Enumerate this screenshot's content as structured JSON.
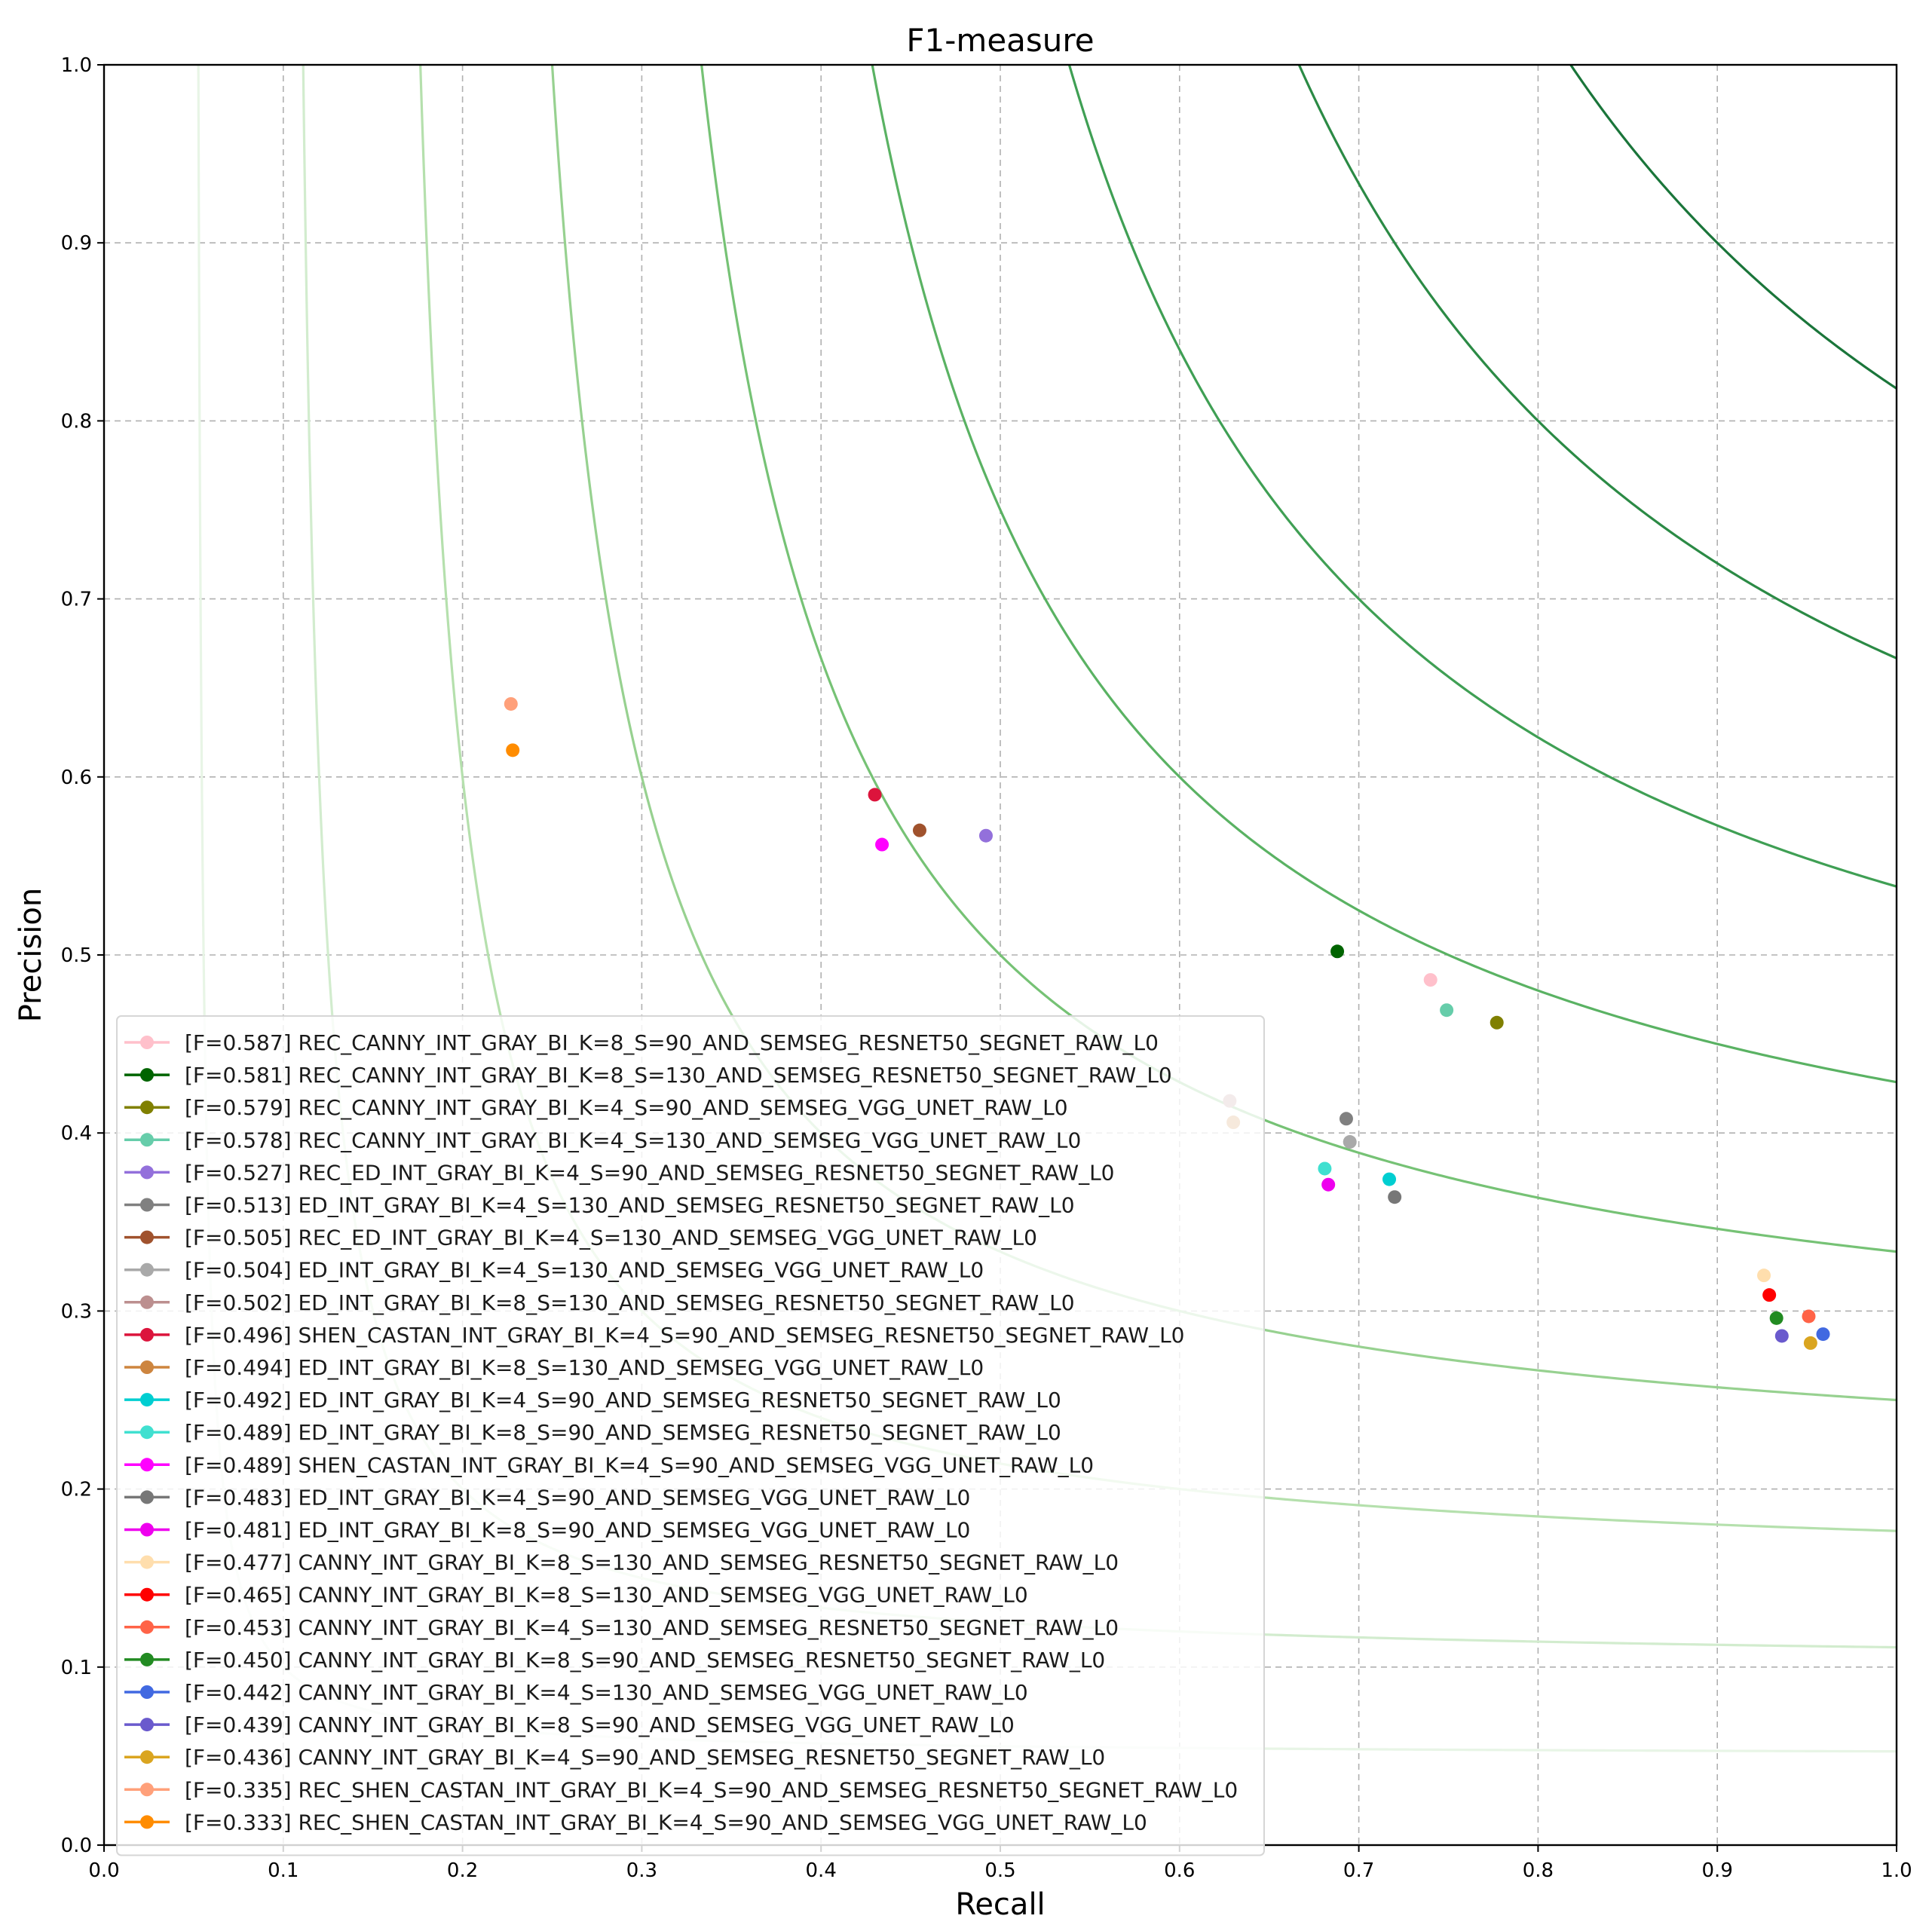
{
  "chart_data": {
    "type": "scatter",
    "title": "F1-measure",
    "xlabel": "Recall",
    "ylabel": "Precision",
    "xlim": [
      0.0,
      1.0
    ],
    "ylim": [
      0.0,
      1.0
    ],
    "grid": true,
    "legend_position": "lower-left",
    "xticks": [
      "0.0",
      "0.1",
      "0.2",
      "0.3",
      "0.4",
      "0.5",
      "0.6",
      "0.7",
      "0.8",
      "0.9",
      "1.0"
    ],
    "yticks": [
      "0.0",
      "0.1",
      "0.2",
      "0.3",
      "0.4",
      "0.5",
      "0.6",
      "0.7",
      "0.8",
      "0.9",
      "1.0"
    ],
    "iso_f_curves": [
      {
        "f": 0.1,
        "color": "#e8f5e6"
      },
      {
        "f": 0.2,
        "color": "#d2ecce"
      },
      {
        "f": 0.3,
        "color": "#b5e0ad"
      },
      {
        "f": 0.4,
        "color": "#97d190"
      },
      {
        "f": 0.5,
        "color": "#76c275"
      },
      {
        "f": 0.6,
        "color": "#5ab263"
      },
      {
        "f": 0.7,
        "color": "#3f9f54"
      },
      {
        "f": 0.8,
        "color": "#2b8a45"
      },
      {
        "f": 0.9,
        "color": "#1a753a"
      }
    ],
    "series": [
      {
        "name": "[F=0.587] REC_CANNY_INT_GRAY_BI_K=8_S=90_AND_SEMSEG_RESNET50_SEGNET_RAW_L0",
        "color": "#ffc0cb",
        "x": 0.74,
        "y": 0.486
      },
      {
        "name": "[F=0.581] REC_CANNY_INT_GRAY_BI_K=8_S=130_AND_SEMSEG_RESNET50_SEGNET_RAW_L0",
        "color": "#006400",
        "x": 0.688,
        "y": 0.502
      },
      {
        "name": "[F=0.579] REC_CANNY_INT_GRAY_BI_K=4_S=90_AND_SEMSEG_VGG_UNET_RAW_L0",
        "color": "#808000",
        "x": 0.777,
        "y": 0.462
      },
      {
        "name": "[F=0.578] REC_CANNY_INT_GRAY_BI_K=4_S=130_AND_SEMSEG_VGG_UNET_RAW_L0",
        "color": "#66cdaa",
        "x": 0.749,
        "y": 0.469
      },
      {
        "name": "[F=0.527] REC_ED_INT_GRAY_BI_K=4_S=90_AND_SEMSEG_RESNET50_SEGNET_RAW_L0",
        "color": "#9370db",
        "x": 0.492,
        "y": 0.567
      },
      {
        "name": "[F=0.513] ED_INT_GRAY_BI_K=4_S=130_AND_SEMSEG_RESNET50_SEGNET_RAW_L0",
        "color": "#808080",
        "x": 0.693,
        "y": 0.408
      },
      {
        "name": "[F=0.505] REC_ED_INT_GRAY_BI_K=4_S=130_AND_SEMSEG_VGG_UNET_RAW_L0",
        "color": "#a0522d",
        "x": 0.455,
        "y": 0.57
      },
      {
        "name": "[F=0.504] ED_INT_GRAY_BI_K=4_S=130_AND_SEMSEG_VGG_UNET_RAW_L0",
        "color": "#a9a9a9",
        "x": 0.695,
        "y": 0.395
      },
      {
        "name": "[F=0.502] ED_INT_GRAY_BI_K=8_S=130_AND_SEMSEG_RESNET50_SEGNET_RAW_L0",
        "color": "#bc8f8f",
        "x": 0.628,
        "y": 0.418
      },
      {
        "name": "[F=0.496] SHEN_CASTAN_INT_GRAY_BI_K=4_S=90_AND_SEMSEG_RESNET50_SEGNET_RAW_L0",
        "color": "#dc143c",
        "x": 0.43,
        "y": 0.59
      },
      {
        "name": "[F=0.494] ED_INT_GRAY_BI_K=8_S=130_AND_SEMSEG_VGG_UNET_RAW_L0",
        "color": "#cd853f",
        "x": 0.63,
        "y": 0.406
      },
      {
        "name": "[F=0.492] ED_INT_GRAY_BI_K=4_S=90_AND_SEMSEG_RESNET50_SEGNET_RAW_L0",
        "color": "#00ced1",
        "x": 0.717,
        "y": 0.374
      },
      {
        "name": "[F=0.489] ED_INT_GRAY_BI_K=8_S=90_AND_SEMSEG_RESNET50_SEGNET_RAW_L0",
        "color": "#40e0d0",
        "x": 0.681,
        "y": 0.38
      },
      {
        "name": "[F=0.489] SHEN_CASTAN_INT_GRAY_BI_K=4_S=90_AND_SEMSEG_VGG_UNET_RAW_L0",
        "color": "#ff00ff",
        "x": 0.434,
        "y": 0.562
      },
      {
        "name": "[F=0.483] ED_INT_GRAY_BI_K=4_S=90_AND_SEMSEG_VGG_UNET_RAW_L0",
        "color": "#777777",
        "x": 0.72,
        "y": 0.364
      },
      {
        "name": "[F=0.481] ED_INT_GRAY_BI_K=8_S=90_AND_SEMSEG_VGG_UNET_RAW_L0",
        "color": "#ee00ee",
        "x": 0.683,
        "y": 0.371
      },
      {
        "name": "[F=0.477] CANNY_INT_GRAY_BI_K=8_S=130_AND_SEMSEG_RESNET50_SEGNET_RAW_L0",
        "color": "#ffdead",
        "x": 0.926,
        "y": 0.32
      },
      {
        "name": "[F=0.465] CANNY_INT_GRAY_BI_K=8_S=130_AND_SEMSEG_VGG_UNET_RAW_L0",
        "color": "#ff0000",
        "x": 0.929,
        "y": 0.309
      },
      {
        "name": "[F=0.453] CANNY_INT_GRAY_BI_K=4_S=130_AND_SEMSEG_RESNET50_SEGNET_RAW_L0",
        "color": "#ff6347",
        "x": 0.951,
        "y": 0.297
      },
      {
        "name": "[F=0.450] CANNY_INT_GRAY_BI_K=8_S=90_AND_SEMSEG_RESNET50_SEGNET_RAW_L0",
        "color": "#228b22",
        "x": 0.933,
        "y": 0.296
      },
      {
        "name": "[F=0.442] CANNY_INT_GRAY_BI_K=4_S=130_AND_SEMSEG_VGG_UNET_RAW_L0",
        "color": "#4169e1",
        "x": 0.959,
        "y": 0.287
      },
      {
        "name": "[F=0.439] CANNY_INT_GRAY_BI_K=8_S=90_AND_SEMSEG_VGG_UNET_RAW_L0",
        "color": "#6a5acd",
        "x": 0.936,
        "y": 0.286
      },
      {
        "name": "[F=0.436] CANNY_INT_GRAY_BI_K=4_S=90_AND_SEMSEG_RESNET50_SEGNET_RAW_L0",
        "color": "#daa520",
        "x": 0.952,
        "y": 0.282
      },
      {
        "name": "[F=0.335] REC_SHEN_CASTAN_INT_GRAY_BI_K=4_S=90_AND_SEMSEG_RESNET50_SEGNET_RAW_L0",
        "color": "#ffa07a",
        "x": 0.227,
        "y": 0.641
      },
      {
        "name": "[F=0.333] REC_SHEN_CASTAN_INT_GRAY_BI_K=4_S=90_AND_SEMSEG_VGG_UNET_RAW_L0",
        "color": "#ff8c00",
        "x": 0.228,
        "y": 0.615
      }
    ]
  }
}
